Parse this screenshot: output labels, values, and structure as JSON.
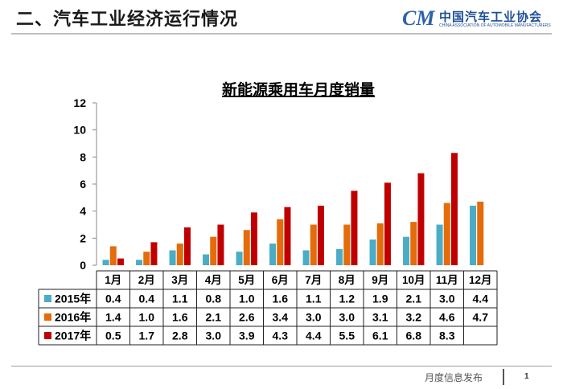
{
  "header": {
    "section_title": "二、汽车工业经济运行情况",
    "logo_mark": "CM",
    "logo_cn": "中国汽车工业协会",
    "logo_en": "CHINA ASSOCIATION OF AUTOMOBILE MANUFACTURERS"
  },
  "footer": {
    "text": "月度信息发布",
    "page_number": "1"
  },
  "colors": {
    "2015年": "#4bacc6",
    "2016年": "#e46c0a",
    "2017年": "#c00000"
  },
  "chart_data": {
    "type": "bar",
    "title": "新能源乘用车月度销量",
    "categories": [
      "1月",
      "2月",
      "3月",
      "4月",
      "5月",
      "6月",
      "7月",
      "8月",
      "9月",
      "10月",
      "11月",
      "12月"
    ],
    "ylim": [
      0,
      12
    ],
    "yticks": [
      0,
      2,
      4,
      6,
      8,
      10,
      12
    ],
    "grid": false,
    "legend": "data-table",
    "series": [
      {
        "name": "2015年",
        "values": [
          0.4,
          0.4,
          1.1,
          0.8,
          1.0,
          1.6,
          1.1,
          1.2,
          1.9,
          2.1,
          3.0,
          4.4
        ]
      },
      {
        "name": "2016年",
        "values": [
          1.4,
          1.0,
          1.6,
          2.1,
          2.6,
          3.4,
          3.0,
          3.0,
          3.1,
          3.2,
          4.6,
          4.7
        ]
      },
      {
        "name": "2017年",
        "values": [
          0.5,
          1.7,
          2.8,
          3.0,
          3.9,
          4.3,
          4.4,
          5.5,
          6.1,
          6.8,
          8.3,
          null
        ]
      }
    ]
  }
}
